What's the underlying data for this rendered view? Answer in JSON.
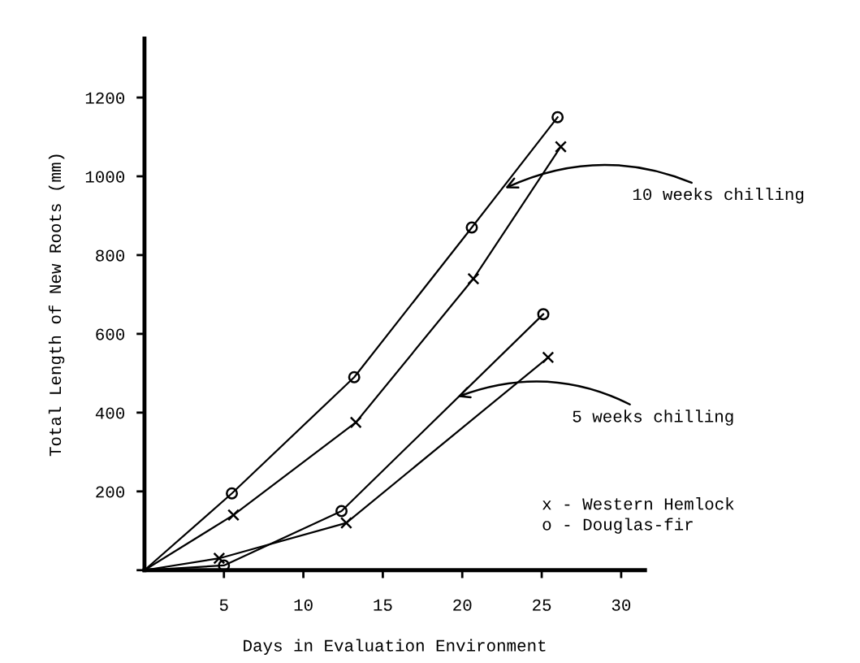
{
  "chart_data": {
    "type": "line",
    "xlabel": "Days in Evaluation Environment",
    "ylabel": "Total Length of New Roots (mm)",
    "xlim": [
      0,
      31.5
    ],
    "xticks": [
      5,
      10,
      15,
      20,
      25,
      30
    ],
    "ylim": [
      0,
      1350
    ],
    "yticks": [
      {
        "value": 0,
        "label": null
      },
      200,
      400,
      600,
      800,
      1000,
      1200
    ],
    "grid": false,
    "legend": false,
    "line_style": "solid",
    "series": [
      {
        "color": "#000000",
        "marker": "circle",
        "x": [
          0,
          5.5,
          13.2,
          20.6,
          26.0
        ],
        "values": [
          0,
          195,
          490,
          870,
          1150
        ]
      },
      {
        "color": "#000000",
        "marker": "cross",
        "x": [
          0,
          5.6,
          13.3,
          20.7,
          26.2
        ],
        "values": [
          0,
          140,
          375,
          740,
          1075
        ]
      },
      {
        "color": "#000000",
        "marker": "circle",
        "x": [
          0,
          5.0,
          12.4,
          25.1
        ],
        "values": [
          0,
          12,
          150,
          650
        ]
      },
      {
        "color": "#000000",
        "marker": "cross",
        "x": [
          0,
          4.7,
          12.7,
          25.4
        ],
        "values": [
          0,
          30,
          120,
          540
        ]
      }
    ],
    "annotations": [
      {
        "text": "10 weeks chilling",
        "x": 22.7,
        "y": 970
      },
      {
        "text": "5 weeks chilling",
        "x": 19.7,
        "y": 440
      },
      "x - Western Hemlock",
      "o - Douglas-fir"
    ]
  }
}
